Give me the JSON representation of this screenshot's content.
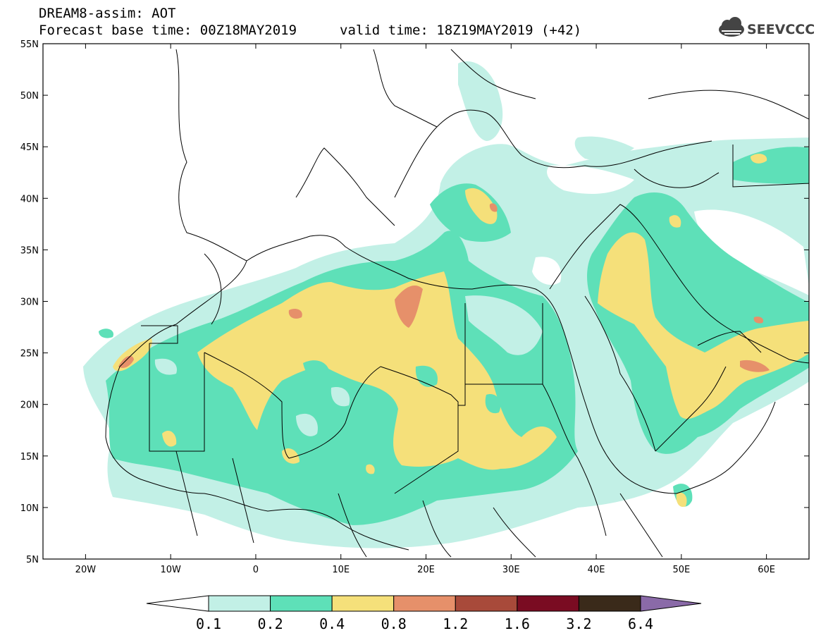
{
  "title": {
    "line1": "DREAM8-assim: AOT",
    "line2": "Forecast base time: 00Z18MAY2019",
    "valid": "valid time: 18Z19MAY2019 (+42)"
  },
  "logo": {
    "text": "SEEVCCC",
    "icon": "cloud-icon"
  },
  "map": {
    "lon_range": [
      -25,
      65
    ],
    "lat_range": [
      5,
      55
    ],
    "lat_ticks": [
      "55N",
      "50N",
      "45N",
      "40N",
      "35N",
      "30N",
      "25N",
      "20N",
      "15N",
      "10N",
      "5N"
    ],
    "lon_ticks": [
      "20W",
      "10W",
      "0",
      "10E",
      "20E",
      "30E",
      "40E",
      "50E",
      "60E"
    ],
    "lat_tick_values": [
      55,
      50,
      45,
      40,
      35,
      30,
      25,
      20,
      15,
      10,
      5
    ],
    "lon_tick_values": [
      -20,
      -10,
      0,
      10,
      20,
      30,
      40,
      50,
      60
    ]
  },
  "colorbar": {
    "levels": [
      "0.1",
      "0.2",
      "0.4",
      "0.8",
      "1.2",
      "1.6",
      "3.2",
      "6.4"
    ],
    "colors": [
      "#c2f0e6",
      "#5ee0b8",
      "#f5e07a",
      "#e6906a",
      "#a84a3a",
      "#7a0c22",
      "#3a2a1a",
      "#8a6aa8"
    ],
    "under_color": "#ffffff",
    "over_color": "#8a6aa8"
  },
  "field_colors": {
    "light": "#c2f0e6",
    "green": "#5ee0b8",
    "yellow": "#f5e07a",
    "orange": "#e6906a"
  }
}
